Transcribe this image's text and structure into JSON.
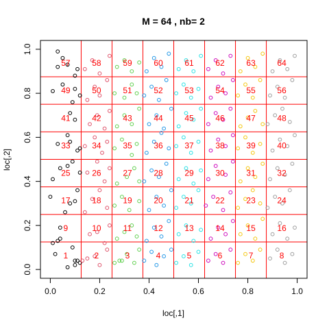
{
  "chart_data": {
    "type": "scatter",
    "title": "M =  64 , nb= 2",
    "xlabel": "loc[,1]",
    "ylabel": "loc[,2]",
    "xlim": [
      -0.04,
      1.04
    ],
    "ylim": [
      -0.04,
      1.04
    ],
    "x_ticks": [
      "0.0",
      "0.2",
      "0.4",
      "0.6",
      "0.8",
      "1.0"
    ],
    "y_ticks": [
      "0.0",
      "0.2",
      "0.4",
      "0.6",
      "0.8",
      "1.0"
    ],
    "grid_breaks": [
      0.125,
      0.25,
      0.375,
      0.5,
      0.625,
      0.75,
      0.875
    ],
    "grid_color": "#ff0000",
    "cell_labels": [
      "1",
      "2",
      "3",
      "4",
      "5",
      "6",
      "7",
      "8",
      "9",
      "10",
      "11",
      "12",
      "13",
      "14",
      "15",
      "16",
      "17",
      "18",
      "19",
      "20",
      "21",
      "22",
      "23",
      "24",
      "25",
      "26",
      "27",
      "28",
      "29",
      "30",
      "31",
      "32",
      "33",
      "34",
      "35",
      "36",
      "37",
      "38",
      "39",
      "40",
      "41",
      "42",
      "43",
      "44",
      "45",
      "46",
      "47",
      "48",
      "49",
      "50",
      "51",
      "52",
      "53",
      "54",
      "55",
      "56",
      "57",
      "58",
      "59",
      "60",
      "61",
      "62",
      "63",
      "64"
    ],
    "cell_label_color": "#ff0000",
    "column_colors": [
      "#000000",
      "#df536b",
      "#61d04f",
      "#2297e6",
      "#28e2e5",
      "#cd0bbc",
      "#f5c710",
      "#9e9e9e"
    ],
    "points": [
      [
        0.02,
        0.07
      ],
      [
        0.03,
        0.13
      ],
      [
        0.07,
        0.01
      ],
      [
        0.1,
        0.02
      ],
      [
        0.1,
        0.04
      ],
      [
        0.11,
        0.04
      ],
      [
        0.04,
        0.14
      ],
      [
        0.01,
        0.12
      ],
      [
        0.12,
        0.03
      ],
      [
        0.09,
        0.1
      ],
      [
        0.04,
        0.19
      ],
      [
        0.0,
        0.33
      ],
      [
        0.01,
        0.41
      ],
      [
        0.08,
        0.3
      ],
      [
        0.06,
        0.26
      ],
      [
        0.11,
        0.36
      ],
      [
        0.1,
        0.31
      ],
      [
        0.04,
        0.46
      ],
      [
        0.07,
        0.47
      ],
      [
        0.09,
        0.49
      ],
      [
        0.12,
        0.44
      ],
      [
        0.03,
        0.57
      ],
      [
        0.07,
        0.61
      ],
      [
        0.08,
        0.58
      ],
      [
        0.11,
        0.54
      ],
      [
        0.12,
        0.55
      ],
      [
        0.1,
        0.68
      ],
      [
        0.08,
        0.71
      ],
      [
        0.09,
        0.76
      ],
      [
        0.12,
        0.79
      ],
      [
        0.01,
        0.81
      ],
      [
        0.05,
        0.84
      ],
      [
        0.1,
        0.82
      ],
      [
        0.03,
        0.92
      ],
      [
        0.05,
        0.96
      ],
      [
        0.07,
        0.93
      ],
      [
        0.1,
        0.88
      ],
      [
        0.11,
        0.91
      ],
      [
        0.03,
        0.99
      ],
      [
        0.13,
        0.04
      ],
      [
        0.15,
        0.05
      ],
      [
        0.18,
        0.06
      ],
      [
        0.2,
        0.02
      ],
      [
        0.23,
        0.09
      ],
      [
        0.16,
        0.16
      ],
      [
        0.19,
        0.17
      ],
      [
        0.22,
        0.12
      ],
      [
        0.24,
        0.2
      ],
      [
        0.14,
        0.26
      ],
      [
        0.17,
        0.32
      ],
      [
        0.2,
        0.36
      ],
      [
        0.23,
        0.28
      ],
      [
        0.15,
        0.44
      ],
      [
        0.19,
        0.49
      ],
      [
        0.22,
        0.4
      ],
      [
        0.24,
        0.46
      ],
      [
        0.14,
        0.56
      ],
      [
        0.18,
        0.6
      ],
      [
        0.21,
        0.53
      ],
      [
        0.23,
        0.58
      ],
      [
        0.16,
        0.66
      ],
      [
        0.19,
        0.7
      ],
      [
        0.22,
        0.64
      ],
      [
        0.24,
        0.72
      ],
      [
        0.15,
        0.77
      ],
      [
        0.18,
        0.83
      ],
      [
        0.2,
        0.79
      ],
      [
        0.23,
        0.86
      ],
      [
        0.14,
        0.91
      ],
      [
        0.17,
        0.95
      ],
      [
        0.2,
        0.89
      ],
      [
        0.24,
        0.97
      ],
      [
        0.26,
        0.03
      ],
      [
        0.28,
        0.04
      ],
      [
        0.29,
        0.04
      ],
      [
        0.31,
        0.07
      ],
      [
        0.34,
        0.03
      ],
      [
        0.36,
        0.09
      ],
      [
        0.27,
        0.14
      ],
      [
        0.3,
        0.17
      ],
      [
        0.33,
        0.2
      ],
      [
        0.35,
        0.15
      ],
      [
        0.26,
        0.29
      ],
      [
        0.29,
        0.33
      ],
      [
        0.32,
        0.27
      ],
      [
        0.36,
        0.31
      ],
      [
        0.27,
        0.39
      ],
      [
        0.31,
        0.42
      ],
      [
        0.34,
        0.46
      ],
      [
        0.36,
        0.4
      ],
      [
        0.26,
        0.55
      ],
      [
        0.29,
        0.59
      ],
      [
        0.33,
        0.52
      ],
      [
        0.35,
        0.57
      ],
      [
        0.27,
        0.65
      ],
      [
        0.3,
        0.7
      ],
      [
        0.33,
        0.66
      ],
      [
        0.36,
        0.73
      ],
      [
        0.26,
        0.8
      ],
      [
        0.3,
        0.78
      ],
      [
        0.33,
        0.84
      ],
      [
        0.35,
        0.8
      ],
      [
        0.27,
        0.92
      ],
      [
        0.3,
        0.95
      ],
      [
        0.33,
        0.9
      ],
      [
        0.36,
        0.94
      ],
      [
        0.38,
        0.04
      ],
      [
        0.41,
        0.08
      ],
      [
        0.43,
        0.02
      ],
      [
        0.46,
        0.06
      ],
      [
        0.49,
        0.09
      ],
      [
        0.39,
        0.13
      ],
      [
        0.42,
        0.19
      ],
      [
        0.45,
        0.15
      ],
      [
        0.48,
        0.22
      ],
      [
        0.4,
        0.27
      ],
      [
        0.43,
        0.33
      ],
      [
        0.46,
        0.29
      ],
      [
        0.49,
        0.36
      ],
      [
        0.38,
        0.4
      ],
      [
        0.41,
        0.45
      ],
      [
        0.44,
        0.42
      ],
      [
        0.47,
        0.48
      ],
      [
        0.39,
        0.53
      ],
      [
        0.42,
        0.58
      ],
      [
        0.45,
        0.62
      ],
      [
        0.48,
        0.55
      ],
      [
        0.4,
        0.66
      ],
      [
        0.43,
        0.7
      ],
      [
        0.46,
        0.64
      ],
      [
        0.49,
        0.73
      ],
      [
        0.38,
        0.79
      ],
      [
        0.41,
        0.83
      ],
      [
        0.44,
        0.77
      ],
      [
        0.47,
        0.86
      ],
      [
        0.39,
        0.9
      ],
      [
        0.42,
        0.96
      ],
      [
        0.45,
        0.92
      ],
      [
        0.48,
        0.98
      ],
      [
        0.51,
        0.03
      ],
      [
        0.54,
        0.06
      ],
      [
        0.57,
        0.02
      ],
      [
        0.6,
        0.08
      ],
      [
        0.52,
        0.16
      ],
      [
        0.55,
        0.2
      ],
      [
        0.58,
        0.13
      ],
      [
        0.61,
        0.18
      ],
      [
        0.51,
        0.28
      ],
      [
        0.54,
        0.33
      ],
      [
        0.57,
        0.3
      ],
      [
        0.6,
        0.36
      ],
      [
        0.52,
        0.41
      ],
      [
        0.55,
        0.46
      ],
      [
        0.58,
        0.39
      ],
      [
        0.61,
        0.45
      ],
      [
        0.51,
        0.56
      ],
      [
        0.54,
        0.6
      ],
      [
        0.57,
        0.53
      ],
      [
        0.6,
        0.58
      ],
      [
        0.52,
        0.65
      ],
      [
        0.55,
        0.71
      ],
      [
        0.58,
        0.68
      ],
      [
        0.61,
        0.73
      ],
      [
        0.51,
        0.8
      ],
      [
        0.54,
        0.84
      ],
      [
        0.57,
        0.78
      ],
      [
        0.6,
        0.82
      ],
      [
        0.52,
        0.91
      ],
      [
        0.55,
        0.95
      ],
      [
        0.58,
        0.9
      ],
      [
        0.61,
        0.97
      ],
      [
        0.64,
        0.04
      ],
      [
        0.67,
        0.07
      ],
      [
        0.7,
        0.03
      ],
      [
        0.73,
        0.09
      ],
      [
        0.65,
        0.14
      ],
      [
        0.68,
        0.19
      ],
      [
        0.71,
        0.16
      ],
      [
        0.74,
        0.22
      ],
      [
        0.63,
        0.29
      ],
      [
        0.66,
        0.33
      ],
      [
        0.7,
        0.27
      ],
      [
        0.73,
        0.35
      ],
      [
        0.64,
        0.41
      ],
      [
        0.67,
        0.47
      ],
      [
        0.71,
        0.43
      ],
      [
        0.74,
        0.49
      ],
      [
        0.65,
        0.54
      ],
      [
        0.68,
        0.59
      ],
      [
        0.71,
        0.56
      ],
      [
        0.74,
        0.61
      ],
      [
        0.64,
        0.66
      ],
      [
        0.67,
        0.71
      ],
      [
        0.7,
        0.68
      ],
      [
        0.73,
        0.73
      ],
      [
        0.65,
        0.78
      ],
      [
        0.68,
        0.83
      ],
      [
        0.71,
        0.8
      ],
      [
        0.74,
        0.86
      ],
      [
        0.64,
        0.91
      ],
      [
        0.67,
        0.95
      ],
      [
        0.7,
        0.89
      ],
      [
        0.73,
        0.97
      ],
      [
        0.76,
        0.03
      ],
      [
        0.79,
        0.07
      ],
      [
        0.82,
        0.04
      ],
      [
        0.85,
        0.09
      ],
      [
        0.77,
        0.16
      ],
      [
        0.8,
        0.2
      ],
      [
        0.83,
        0.14
      ],
      [
        0.86,
        0.23
      ],
      [
        0.76,
        0.28
      ],
      [
        0.79,
        0.32
      ],
      [
        0.82,
        0.36
      ],
      [
        0.85,
        0.3
      ],
      [
        0.77,
        0.4
      ],
      [
        0.8,
        0.46
      ],
      [
        0.83,
        0.42
      ],
      [
        0.86,
        0.48
      ],
      [
        0.76,
        0.55
      ],
      [
        0.79,
        0.6
      ],
      [
        0.82,
        0.53
      ],
      [
        0.85,
        0.57
      ],
      [
        0.77,
        0.65
      ],
      [
        0.8,
        0.69
      ],
      [
        0.83,
        0.72
      ],
      [
        0.86,
        0.66
      ],
      [
        0.76,
        0.79
      ],
      [
        0.79,
        0.84
      ],
      [
        0.82,
        0.78
      ],
      [
        0.85,
        0.86
      ],
      [
        0.77,
        0.9
      ],
      [
        0.8,
        0.96
      ],
      [
        0.83,
        0.92
      ],
      [
        0.86,
        0.98
      ],
      [
        0.89,
        0.05
      ],
      [
        0.92,
        0.09
      ],
      [
        0.95,
        0.03
      ],
      [
        0.98,
        0.07
      ],
      [
        0.9,
        0.16
      ],
      [
        0.93,
        0.21
      ],
      [
        0.96,
        0.14
      ],
      [
        0.99,
        0.19
      ],
      [
        0.88,
        0.28
      ],
      [
        0.91,
        0.33
      ],
      [
        0.94,
        0.3
      ],
      [
        0.97,
        0.36
      ],
      [
        0.89,
        0.41
      ],
      [
        0.92,
        0.46
      ],
      [
        0.95,
        0.43
      ],
      [
        0.98,
        0.48
      ],
      [
        0.9,
        0.54
      ],
      [
        0.93,
        0.59
      ],
      [
        0.96,
        0.56
      ],
      [
        0.99,
        0.61
      ],
      [
        0.88,
        0.66
      ],
      [
        0.91,
        0.7
      ],
      [
        0.94,
        0.73
      ],
      [
        0.97,
        0.67
      ],
      [
        0.89,
        0.79
      ],
      [
        0.92,
        0.83
      ],
      [
        0.95,
        0.78
      ],
      [
        0.98,
        0.86
      ],
      [
        0.9,
        0.9
      ],
      [
        0.93,
        0.95
      ],
      [
        0.96,
        0.91
      ],
      [
        0.99,
        0.97
      ]
    ]
  }
}
